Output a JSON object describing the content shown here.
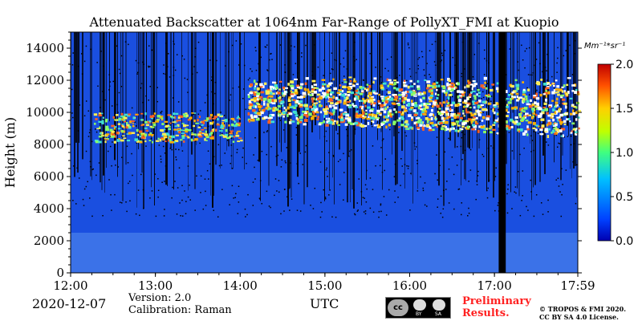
{
  "chart_data": {
    "type": "heatmap",
    "title": "Attenuated Backscatter at 1064nm Far-Range of PollyXT_FMI at Kuopio",
    "ylabel": "Height (m)",
    "xlabel": "UTC",
    "x_ticks": [
      "12:00",
      "13:00",
      "14:00",
      "15:00",
      "16:00",
      "17:00",
      "17:59"
    ],
    "x_range": [
      "12:00",
      "17:59"
    ],
    "y_ticks": [
      0,
      2000,
      4000,
      6000,
      8000,
      10000,
      12000,
      14000
    ],
    "ylim": [
      0,
      15000
    ],
    "colorbar": {
      "unit": "Mm⁻¹*sr⁻¹",
      "ticks": [
        "0.0",
        "0.5",
        "1.0",
        "1.5",
        "2.0"
      ],
      "range": [
        0,
        2.0
      ],
      "colormap": "jet"
    },
    "no_data_intervals": [
      [
        "17:03",
        "17:08"
      ]
    ],
    "features": [
      {
        "kind": "cirrus-layer",
        "time_start": "14:05",
        "time_end": "17:59",
        "base_m": 8500,
        "top_m": 12300
      },
      {
        "kind": "cloud-layer",
        "time_start": "12:15",
        "time_end": "14:00",
        "base_m": 8200,
        "top_m": 10000
      },
      {
        "kind": "aerosol-boundary-layer",
        "time_start": "12:00",
        "time_end": "17:59",
        "base_m": 0,
        "top_m": 2500
      }
    ]
  },
  "footer": {
    "date": "2020-12-07",
    "version": "Version: 2.0",
    "calibration": "Calibration: Raman",
    "utc_label": "UTC",
    "preliminary_line1": "Preliminary",
    "preliminary_line2": "Results.",
    "copyright_line1": "© TROPOS & FMI 2020.",
    "copyright_line2": "CC BY SA 4.0 License.",
    "license_badge": "cc",
    "license_by": "BY",
    "license_sa": "SA"
  },
  "colors": {
    "background_low": "#1a4fe0",
    "no_data": "#000000",
    "cloud_high": "#ffffff"
  }
}
